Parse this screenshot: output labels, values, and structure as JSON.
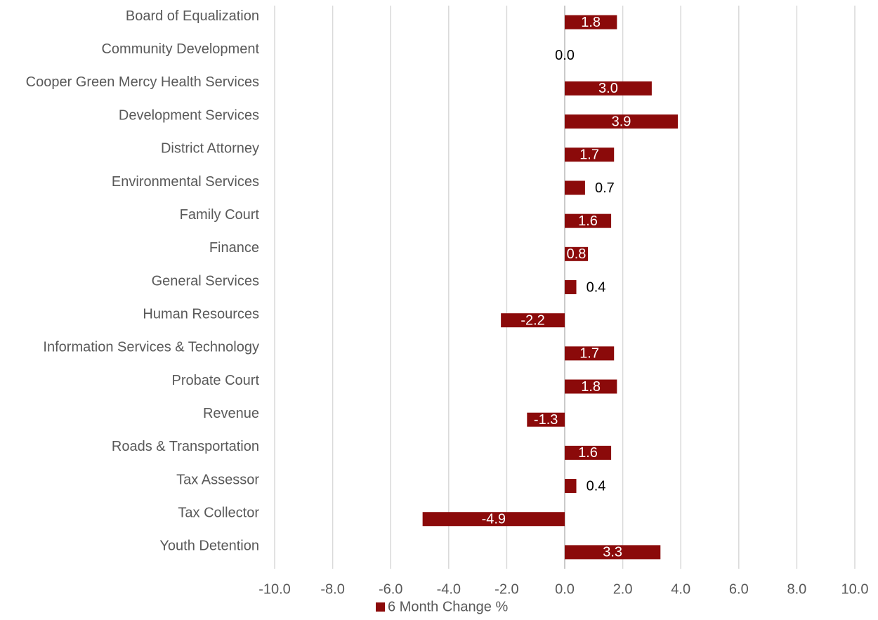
{
  "chart_data": {
    "type": "hbar",
    "categories": [
      "Board of Equalization",
      "Community Development",
      "Cooper Green Mercy Health Services",
      "Development Services",
      "District Attorney",
      "Environmental Services",
      "Family Court",
      "Finance",
      "General Services",
      "Human Resources",
      "Information Services & Technology",
      "Probate Court",
      "Revenue",
      "Roads & Transportation",
      "Tax Assessor",
      "Tax Collector",
      "Youth Detention"
    ],
    "series": [
      {
        "name": "6 Month Change %",
        "color": "#8b0a0a",
        "values": [
          1.8,
          0.0,
          3.0,
          3.9,
          1.7,
          0.7,
          1.6,
          0.8,
          0.4,
          -2.2,
          1.7,
          1.8,
          -1.3,
          1.6,
          0.4,
          -4.9,
          3.3
        ],
        "value_labels": [
          "1.8",
          "0.0",
          "3.0",
          "3.9",
          "1.7",
          "0.7",
          "1.6",
          "0.8",
          "0.4",
          "-2.2",
          "1.7",
          "1.8",
          "-1.3",
          "1.6",
          "0.4",
          "-4.9",
          "3.3"
        ]
      }
    ],
    "xlim": [
      -10,
      10
    ],
    "xticks": [
      {
        "value": -10,
        "label": "-10.0"
      },
      {
        "value": -8,
        "label": "-8.0"
      },
      {
        "value": -6,
        "label": "-6.0"
      },
      {
        "value": -4,
        "label": "-4.0"
      },
      {
        "value": -2,
        "label": "-2.0"
      },
      {
        "value": 0,
        "label": "0.0"
      },
      {
        "value": 2,
        "label": "2.0"
      },
      {
        "value": 4,
        "label": "4.0"
      },
      {
        "value": 6,
        "label": "6.0"
      },
      {
        "value": 8,
        "label": "8.0"
      },
      {
        "value": 10,
        "label": "10.0"
      }
    ],
    "grid": true,
    "legend": "bottom"
  }
}
